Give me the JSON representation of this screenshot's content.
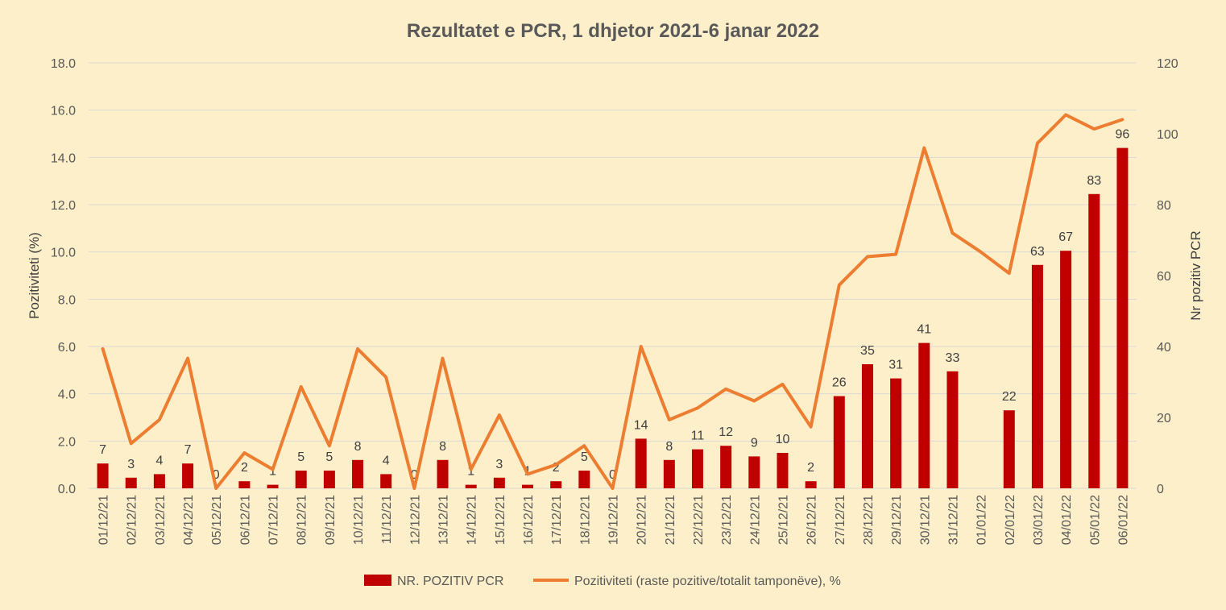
{
  "chart_data": {
    "type": "bar",
    "title": "Rezultatet e PCR, 1 dhjetor 2021-6 janar 2022",
    "ylabel_left": "Pozitiviteti (%)",
    "ylabel_right": "Nr pozitiv PCR",
    "ylim_left": [
      0,
      18
    ],
    "ylim_right": [
      0,
      120
    ],
    "yticks_left": [
      "0.0",
      "2.0",
      "4.0",
      "6.0",
      "8.0",
      "10.0",
      "12.0",
      "14.0",
      "16.0",
      "18.0"
    ],
    "yticks_right": [
      "0",
      "20",
      "40",
      "60",
      "80",
      "100",
      "120"
    ],
    "grid": true,
    "legend_position": "bottom",
    "categories": [
      "01/12/21",
      "02/12/21",
      "03/12/21",
      "04/12/21",
      "05/12/21",
      "06/12/21",
      "07/12/21",
      "08/12/21",
      "09/12/21",
      "10/12/21",
      "11/12/21",
      "12/12/21",
      "13/12/21",
      "14/12/21",
      "15/12/21",
      "16/12/21",
      "17/12/21",
      "18/12/21",
      "19/12/21",
      "20/12/21",
      "21/12/21",
      "22/12/21",
      "23/12/21",
      "24/12/21",
      "25/12/21",
      "26/12/21",
      "27/12/21",
      "28/12/21",
      "29/12/21",
      "30/12/21",
      "31/12/21",
      "01/01/22",
      "02/01/22",
      "03/01/22",
      "04/01/22",
      "05/01/22",
      "06/01/22"
    ],
    "series": [
      {
        "name": "NR. POZITIV PCR",
        "type": "bar",
        "axis": "right",
        "color": "#c00000",
        "values": [
          7,
          3,
          4,
          7,
          0,
          2,
          1,
          5,
          5,
          8,
          4,
          0,
          8,
          1,
          3,
          1,
          2,
          5,
          0,
          14,
          8,
          11,
          12,
          9,
          10,
          2,
          26,
          35,
          31,
          41,
          33,
          null,
          22,
          63,
          67,
          83,
          96
        ],
        "labels": [
          "7",
          "3",
          "4",
          "7",
          "0",
          "2",
          "1",
          "5",
          "5",
          "8",
          "4",
          "0",
          "8",
          "1",
          "3",
          "1",
          "2",
          "5",
          "0",
          "14",
          "8",
          "11",
          "12",
          "9",
          "10",
          "2",
          "26",
          "35",
          "31",
          "41",
          "33",
          "",
          "22",
          "63",
          "67",
          "83",
          "96"
        ]
      },
      {
        "name": "Pozitiviteti (raste pozitive/totalit tamponëve), %",
        "type": "line",
        "axis": "left",
        "color": "#ed7d31",
        "values": [
          5.9,
          1.9,
          2.9,
          5.5,
          0.0,
          1.5,
          0.8,
          4.3,
          1.8,
          5.9,
          4.7,
          0.0,
          5.5,
          0.8,
          3.1,
          0.6,
          1.0,
          1.8,
          0.0,
          6.0,
          2.9,
          3.4,
          4.2,
          3.7,
          4.4,
          2.6,
          8.6,
          9.8,
          9.9,
          14.4,
          10.8,
          10.0,
          9.1,
          14.6,
          15.8,
          15.2,
          15.6
        ]
      }
    ]
  }
}
